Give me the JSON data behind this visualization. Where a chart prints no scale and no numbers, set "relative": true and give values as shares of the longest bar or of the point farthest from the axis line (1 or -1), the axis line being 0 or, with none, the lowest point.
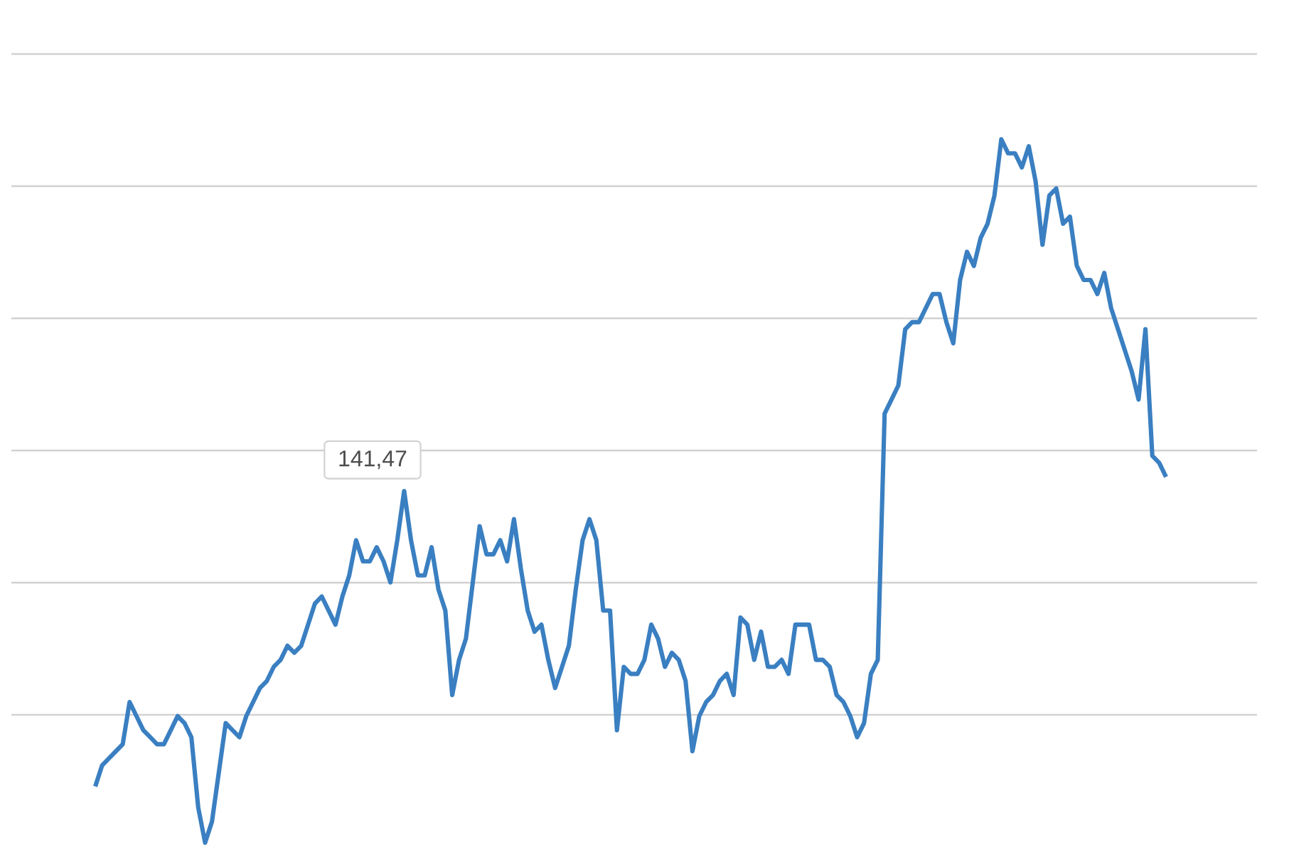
{
  "chart_data": {
    "type": "line",
    "relative": true,
    "grid": true,
    "color": "#3a7fc1",
    "categories": [
      null,
      null,
      null,
      null,
      null,
      null,
      null,
      null,
      null,
      null,
      null,
      null,
      null,
      null,
      null,
      null,
      null,
      null,
      null,
      null,
      null,
      null,
      null,
      null,
      null,
      null,
      null,
      null,
      null,
      null,
      null,
      null,
      null,
      null,
      null,
      null,
      null,
      null,
      null,
      null,
      null,
      null,
      null,
      null,
      null,
      null,
      null,
      null,
      null,
      null,
      null,
      null,
      null,
      null,
      null,
      null,
      null,
      null,
      null,
      null,
      null,
      null,
      null,
      null,
      null,
      null,
      null,
      null,
      null,
      null,
      null,
      null,
      null,
      null,
      null,
      null,
      null,
      null,
      null,
      null,
      null,
      null,
      null,
      null,
      null,
      null,
      null,
      null,
      null,
      null,
      null,
      null,
      null,
      null,
      null,
      null,
      null,
      null,
      null,
      null,
      null,
      null,
      null,
      null,
      null,
      null,
      null,
      null,
      null,
      null,
      null,
      null,
      null,
      null,
      null,
      null,
      null,
      null,
      null,
      null,
      null,
      null,
      null,
      null,
      null,
      null,
      null,
      null,
      null,
      null,
      null,
      null,
      null,
      null,
      null,
      null,
      null,
      null,
      null,
      null,
      null,
      null,
      null,
      null,
      null,
      null,
      null,
      null,
      null,
      null,
      null,
      null,
      null,
      null,
      null,
      null,
      null
    ],
    "values": [
      0.08,
      0.11,
      0.12,
      0.13,
      0.14,
      0.2,
      0.18,
      0.16,
      0.15,
      0.14,
      0.14,
      0.16,
      0.18,
      0.17,
      0.15,
      0.05,
      0.0,
      0.03,
      0.1,
      0.17,
      0.16,
      0.15,
      0.18,
      0.2,
      0.22,
      0.23,
      0.25,
      0.26,
      0.28,
      0.27,
      0.28,
      0.31,
      0.34,
      0.35,
      0.33,
      0.31,
      0.35,
      0.38,
      0.43,
      0.4,
      0.4,
      0.42,
      0.4,
      0.37,
      0.43,
      0.5,
      0.43,
      0.38,
      0.38,
      0.42,
      0.36,
      0.33,
      0.21,
      0.26,
      0.29,
      0.37,
      0.45,
      0.41,
      0.41,
      0.43,
      0.4,
      0.46,
      0.39,
      0.33,
      0.3,
      0.31,
      0.26,
      0.22,
      0.25,
      0.28,
      0.36,
      0.43,
      0.46,
      0.43,
      0.33,
      0.33,
      0.16,
      0.25,
      0.24,
      0.24,
      0.26,
      0.31,
      0.29,
      0.25,
      0.27,
      0.26,
      0.23,
      0.13,
      0.18,
      0.2,
      0.21,
      0.23,
      0.24,
      0.21,
      0.32,
      0.31,
      0.26,
      0.3,
      0.25,
      0.25,
      0.26,
      0.24,
      0.31,
      0.31,
      0.31,
      0.26,
      0.26,
      0.25,
      0.21,
      0.2,
      0.18,
      0.15,
      0.17,
      0.24,
      0.26,
      0.61,
      0.63,
      0.65,
      0.73,
      0.74,
      0.74,
      0.76,
      0.78,
      0.78,
      0.74,
      0.71,
      0.8,
      0.84,
      0.82,
      0.86,
      0.88,
      0.92,
      1.0,
      0.98,
      0.98,
      0.96,
      0.99,
      0.94,
      0.85,
      0.92,
      0.93,
      0.88,
      0.89,
      0.82,
      0.8,
      0.8,
      0.78,
      0.81,
      0.76,
      0.73,
      0.7,
      0.67,
      0.63,
      0.73,
      0.55,
      0.54,
      0.52
    ],
    "annotations": [
      "141,47"
    ],
    "value_labels": [
      null,
      null,
      null,
      null,
      null,
      null,
      null,
      null,
      null,
      null,
      null,
      null,
      null,
      null,
      null,
      null,
      null,
      null,
      null,
      null,
      null,
      null,
      null,
      null,
      null,
      null,
      null,
      null,
      null,
      null,
      null,
      null,
      null,
      null,
      null,
      null,
      null,
      null,
      null,
      null,
      null,
      null,
      null,
      null,
      null,
      null,
      null,
      null,
      null,
      null,
      null,
      null,
      null,
      null,
      null,
      null,
      null,
      null,
      null,
      null,
      null,
      null,
      null,
      null,
      null,
      null,
      null,
      null,
      null,
      null,
      null,
      null,
      null,
      null,
      null,
      null,
      null,
      null,
      null,
      null,
      null,
      null,
      null,
      null,
      null,
      null,
      null,
      null,
      null,
      null,
      null,
      null,
      null,
      null,
      null,
      null,
      null,
      null,
      null,
      null,
      null,
      null,
      null,
      null,
      null,
      null,
      null,
      null,
      null,
      null,
      null,
      null,
      null,
      null,
      null,
      null,
      null,
      null,
      null,
      null,
      null,
      null,
      null,
      null,
      null,
      null,
      null,
      null,
      null,
      null,
      null,
      null,
      null,
      null,
      null,
      null,
      null,
      null,
      null,
      null,
      null,
      null,
      null,
      null,
      null,
      null,
      null,
      null,
      null,
      null,
      null,
      null,
      null,
      null,
      null,
      null,
      null
    ]
  }
}
